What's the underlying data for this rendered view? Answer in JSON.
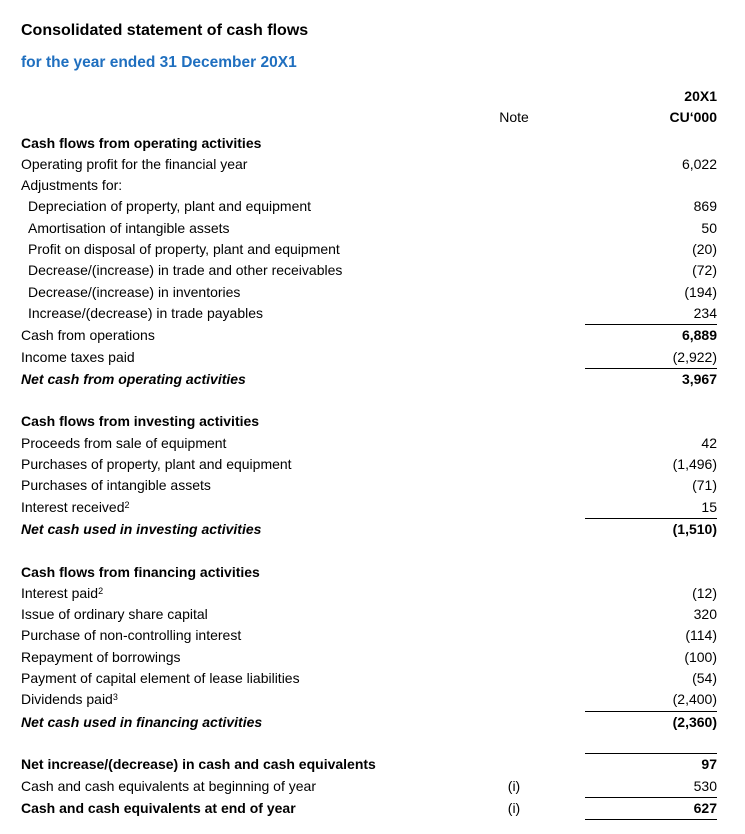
{
  "page": {
    "title": "Consolidated statement of cash flows",
    "subtitle": "for the year ended 31 December 20X1"
  },
  "columns": {
    "year": "20X1",
    "note": "Note",
    "unit": "CU‘000"
  },
  "colors": {
    "accent_blue": "#1f6fbf",
    "text": "#000000",
    "rule": "#000000"
  },
  "statement": {
    "sections": [
      {
        "title": "Cash flows from operating activities",
        "rows": [
          {
            "label": "Operating profit for the financial year",
            "value": "6,022"
          },
          {
            "label": "Adjustments for:"
          },
          {
            "label": "Depreciation of property, plant and equipment",
            "indent": true,
            "value": "869"
          },
          {
            "label": "Amortisation of intangible assets",
            "indent": true,
            "value": "50"
          },
          {
            "label": "Profit on disposal of property, plant and equipment",
            "indent": true,
            "value": "(20)"
          },
          {
            "label": "Decrease/(increase) in trade and other receivables",
            "indent": true,
            "value": "(72)"
          },
          {
            "label": "Decrease/(increase) in inventories",
            "indent": true,
            "value": "(194)"
          },
          {
            "label": "Increase/(decrease) in trade payables",
            "indent": true,
            "value": "234",
            "rule_below": true
          },
          {
            "label": "Cash from operations",
            "value": "6,889",
            "value_bold": true
          },
          {
            "label": "Income taxes paid",
            "value": "(2,922)",
            "rule_below": true
          },
          {
            "label": "Net cash from operating activities",
            "label_style": "bold-italic",
            "value": "3,967",
            "value_bold": true
          }
        ]
      },
      {
        "title": "Cash flows from investing activities",
        "rows": [
          {
            "label": "Proceeds from sale of equipment",
            "value": "42"
          },
          {
            "label": "Purchases of property, plant and equipment",
            "value": "(1,496)"
          },
          {
            "label": "Purchases of intangible assets",
            "value": "(71)"
          },
          {
            "label": "Interest received",
            "sup": "2",
            "value": "15",
            "rule_below": true
          },
          {
            "label": "Net cash used in investing activities",
            "label_style": "bold-italic",
            "value": "(1,510)",
            "value_bold": true
          }
        ]
      },
      {
        "title": "Cash flows from financing activities",
        "rows": [
          {
            "label": "Interest paid",
            "sup": "2",
            "value": "(12)"
          },
          {
            "label": "Issue of ordinary share capital",
            "value": "320"
          },
          {
            "label": "Purchase of non-controlling interest",
            "value": "(114)"
          },
          {
            "label": "Repayment of borrowings",
            "value": "(100)"
          },
          {
            "label": "Payment of capital element of lease liabilities",
            "value": "(54)"
          },
          {
            "label": "Dividends paid",
            "sup": "3",
            "value": "(2,400)",
            "rule_below": true
          },
          {
            "label": "Net cash used in financing activities",
            "label_style": "bold-italic",
            "value": "(2,360)",
            "value_bold": true
          }
        ]
      },
      {
        "title": null,
        "rule_above": true,
        "rows": [
          {
            "label": "Net increase/(decrease) in cash and cash equivalents",
            "label_style": "bold",
            "value": "97",
            "value_bold": true
          },
          {
            "label": "Cash and cash equivalents at beginning of year",
            "note": "(i)",
            "value": "530",
            "rule_below": true
          },
          {
            "label": "Cash and cash equivalents at end of year",
            "label_style": "bold",
            "note": "(i)",
            "value": "627",
            "value_bold": true,
            "rule_below": true
          }
        ]
      }
    ]
  }
}
